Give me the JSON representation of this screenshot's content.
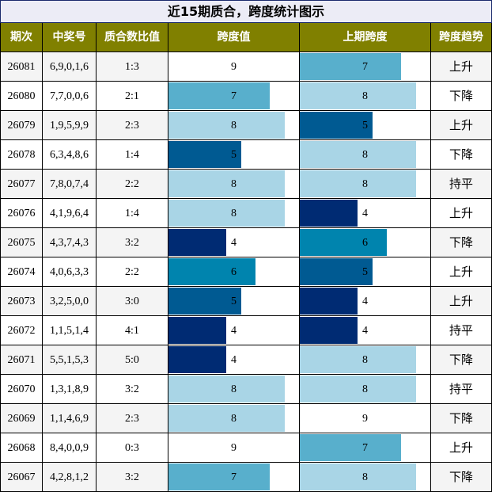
{
  "title": "近15期质合，跨度统计图示",
  "columns": [
    "期次",
    "中奖号",
    "质合数比值",
    "跨度值",
    "上期跨度",
    "跨度趋势"
  ],
  "bar_scale": [
    0,
    9
  ],
  "span_colors": {
    "4": "#002b73",
    "5": "#005a92",
    "6": "#0084ae",
    "7": "#58afcc",
    "8": "#a9d5e6",
    "9": "#ffffff"
  },
  "header_color": "#808000",
  "rows": [
    [
      "26081",
      "6,9,0,1,6",
      "1:3",
      9,
      7,
      "上升"
    ],
    [
      "26080",
      "7,7,0,0,6",
      "2:1",
      7,
      8,
      "下降"
    ],
    [
      "26079",
      "1,9,5,9,9",
      "2:3",
      8,
      5,
      "上升"
    ],
    [
      "26078",
      "6,3,4,8,6",
      "1:4",
      5,
      8,
      "下降"
    ],
    [
      "26077",
      "7,8,0,7,4",
      "2:2",
      8,
      8,
      "持平"
    ],
    [
      "26076",
      "4,1,9,6,4",
      "1:4",
      8,
      4,
      "上升"
    ],
    [
      "26075",
      "4,3,7,4,3",
      "3:2",
      4,
      6,
      "下降"
    ],
    [
      "26074",
      "4,0,6,3,3",
      "2:2",
      6,
      5,
      "上升"
    ],
    [
      "26073",
      "3,2,5,0,0",
      "3:0",
      5,
      4,
      "上升"
    ],
    [
      "26072",
      "1,1,5,1,4",
      "4:1",
      4,
      4,
      "持平"
    ],
    [
      "26071",
      "5,5,1,5,3",
      "5:0",
      4,
      8,
      "下降"
    ],
    [
      "26070",
      "1,3,1,8,9",
      "3:2",
      8,
      8,
      "持平"
    ],
    [
      "26069",
      "1,1,4,6,9",
      "2:3",
      8,
      9,
      "下降"
    ],
    [
      "26068",
      "8,4,0,0,9",
      "0:3",
      9,
      7,
      "上升"
    ],
    [
      "26067",
      "4,2,8,1,2",
      "3:2",
      7,
      8,
      "下降"
    ]
  ]
}
